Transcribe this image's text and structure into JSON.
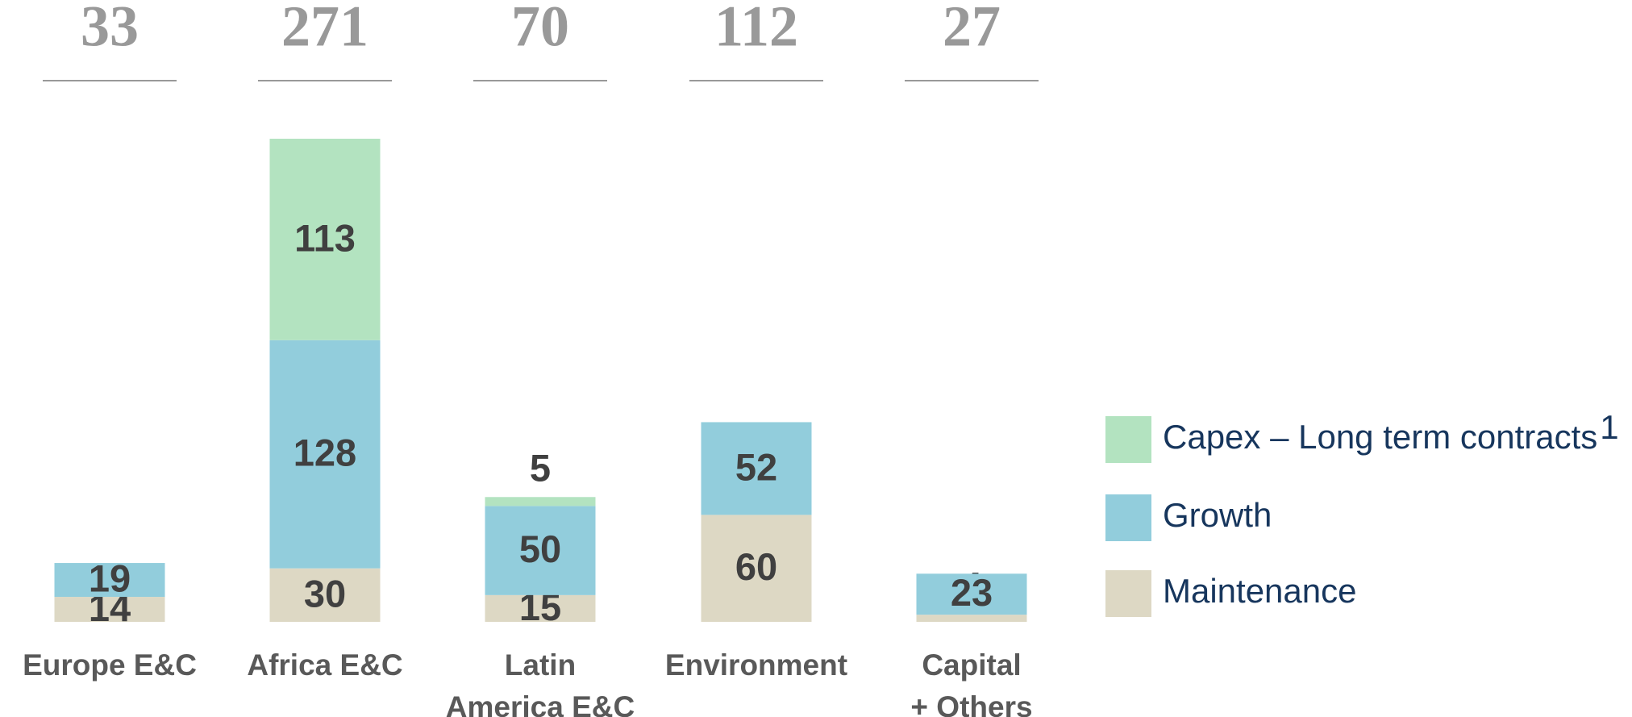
{
  "chart_data": {
    "type": "stacked_bar",
    "categories": [
      "Europe E&C",
      "Africa E&C",
      "Latin America E&C",
      "Environment",
      "Capital + Others"
    ],
    "totals": [
      33,
      271,
      70,
      112,
      27
    ],
    "series": [
      {
        "name": "Maintenance",
        "color": "#ddd8c4",
        "values": [
          14,
          30,
          15,
          60,
          4
        ]
      },
      {
        "name": "Growth",
        "color": "#92cddc",
        "values": [
          19,
          128,
          50,
          52,
          23
        ]
      },
      {
        "name": "Capex – Long term contracts",
        "footnote": "1",
        "color": "#b3e3c0",
        "values": [
          null,
          113,
          5,
          null,
          null
        ]
      }
    ]
  }
}
